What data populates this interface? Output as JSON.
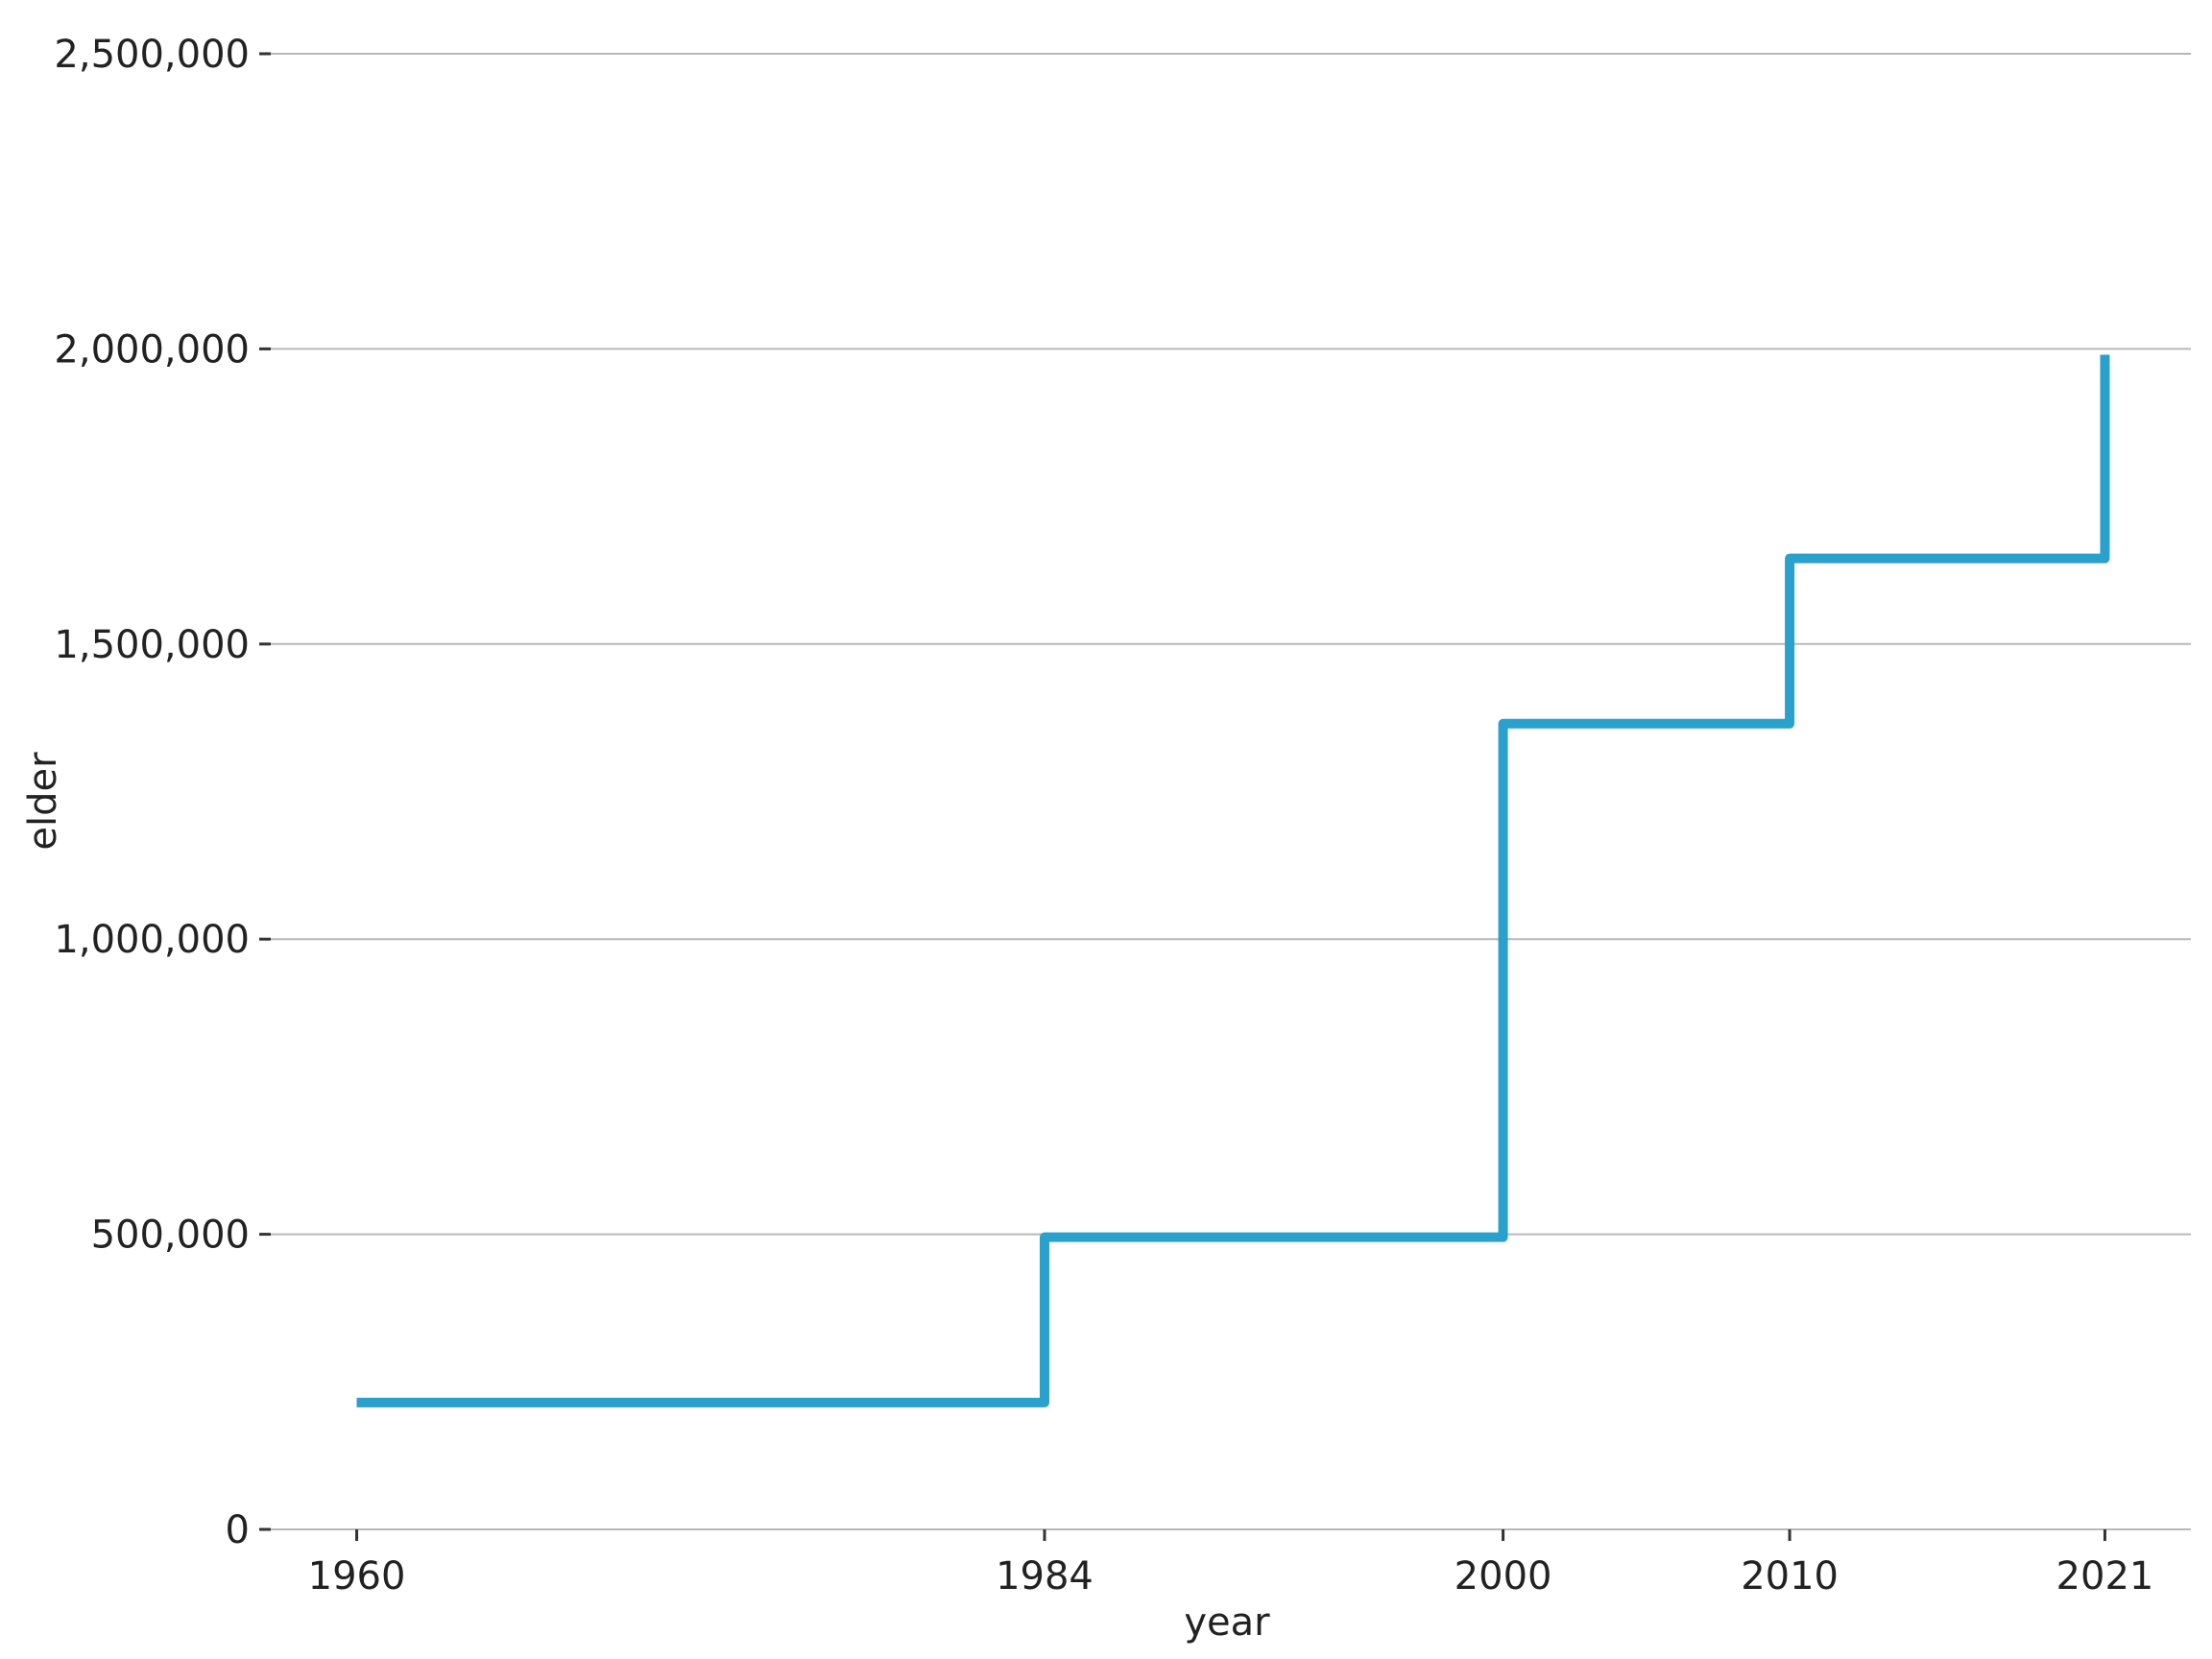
{
  "chart_data": {
    "type": "line",
    "step": "post",
    "title": "",
    "xlabel": "year",
    "ylabel": "elder",
    "x_ticks": [
      1960,
      1984,
      2000,
      2010,
      2021
    ],
    "x_tick_labels": [
      "1960",
      "1984",
      "2000",
      "2010",
      "2021"
    ],
    "y_ticks": [
      0,
      500000,
      1000000,
      1500000,
      2000000,
      2500000
    ],
    "y_tick_labels": [
      "0",
      "500,000",
      "1,000,000",
      "1,500,000",
      "2,000,000",
      "2,500,000"
    ],
    "xlim": [
      1957,
      2024
    ],
    "ylim": [
      0,
      2500000
    ],
    "grid": "horizontal",
    "legend": "none",
    "series": [
      {
        "color": "#2aa0cc",
        "points": [
          {
            "x": 1960,
            "y": 215000
          },
          {
            "x": 1984,
            "y": 495000
          },
          {
            "x": 2000,
            "y": 1365000
          },
          {
            "x": 2010,
            "y": 1645000
          },
          {
            "x": 2021,
            "y": 1990000
          }
        ]
      }
    ]
  }
}
